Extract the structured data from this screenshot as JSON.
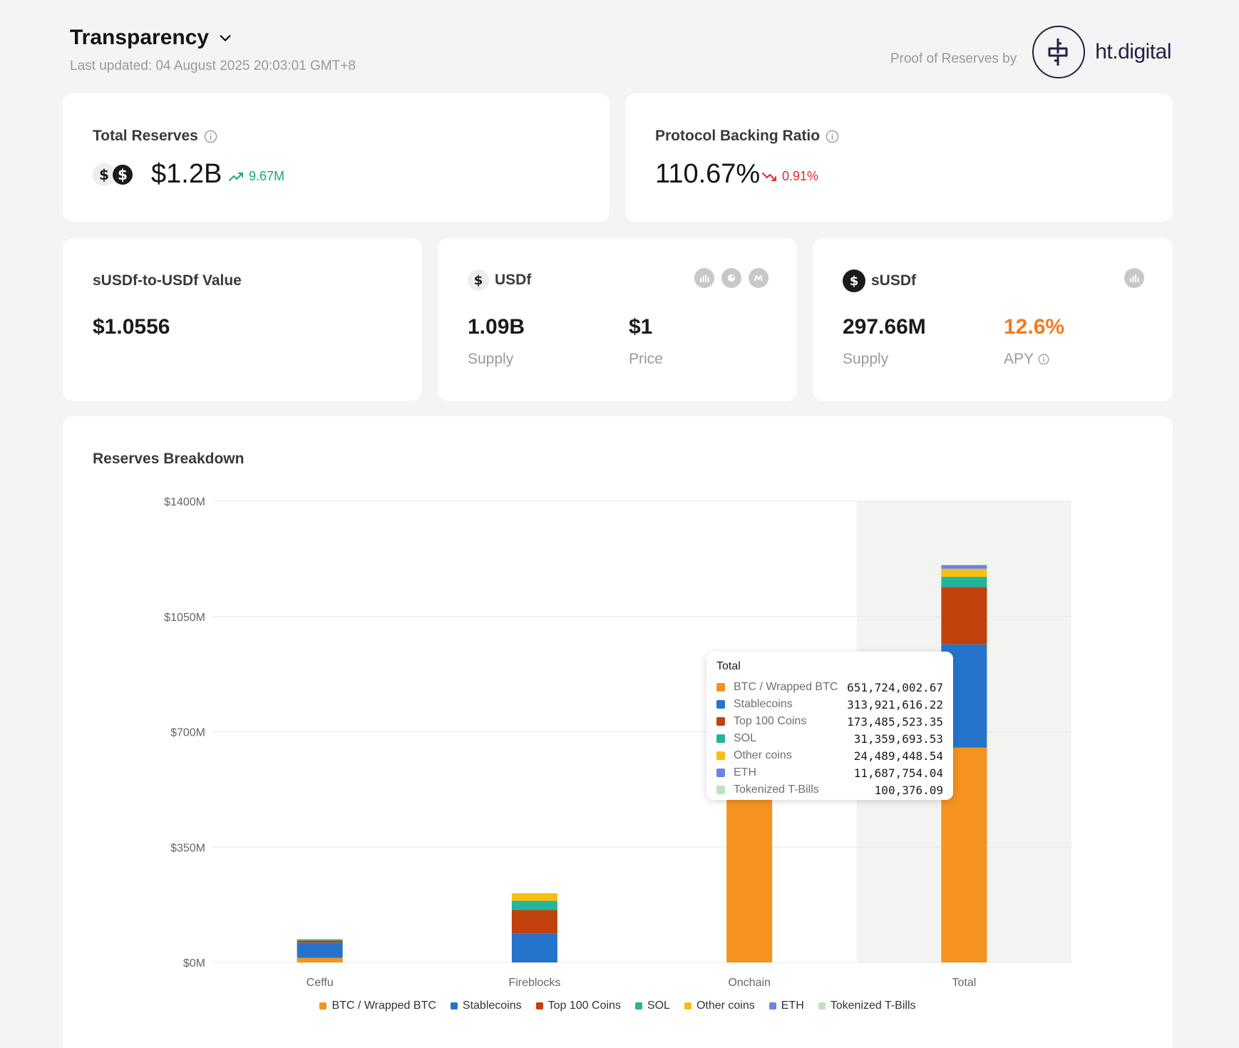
{
  "header": {
    "title": "Transparency",
    "last_updated": "Last updated: 04 August 2025 20:03:01 GMT+8",
    "proof_text": "Proof of Reserves by",
    "logo_text": "ht.digital"
  },
  "total_reserves": {
    "label": "Total Reserves",
    "value": "$1.2B",
    "delta": "9.67M"
  },
  "backing_ratio": {
    "label": "Protocol Backing Ratio",
    "value": "110.67%",
    "delta": "0.91%"
  },
  "susdf_value": {
    "label": "sUSDf-to-USDf Value",
    "value": "$1.0556"
  },
  "usdf": {
    "label": "USDf",
    "supply": "1.09B",
    "supply_label": "Supply",
    "price": "$1",
    "price_label": "Price"
  },
  "susdf": {
    "label": "sUSDf",
    "supply": "297.66M",
    "supply_label": "Supply",
    "apy": "12.6%",
    "apy_label": "APY"
  },
  "colors": {
    "up": "#19a87a",
    "down": "#e22a2a",
    "apy": "#f47a20"
  },
  "chart_data": {
    "type": "bar",
    "stacked": true,
    "title": "Reserves Breakdown",
    "xlabel": "",
    "ylabel": "",
    "y_ticks": [
      "$0M",
      "$350M",
      "$700M",
      "$1050M",
      "$1400M"
    ],
    "ylim": [
      0,
      1400
    ],
    "unit": "M USD",
    "categories": [
      "Ceffu",
      "Fireblocks",
      "Onchain",
      "Total"
    ],
    "highlighted_category": "Total",
    "series": [
      {
        "name": "BTC / Wrapped BTC",
        "color": "#f5931f",
        "values": [
          14,
          0,
          638,
          651.72
        ]
      },
      {
        "name": "Stablecoins",
        "color": "#2673cc",
        "values": [
          46,
          87,
          181,
          313.92
        ]
      },
      {
        "name": "Top 100 Coins",
        "color": "#c2410c",
        "values": [
          6,
          72,
          95,
          173.49
        ]
      },
      {
        "name": "SOL",
        "color": "#23b59a",
        "values": [
          3,
          28,
          0,
          31.36
        ]
      },
      {
        "name": "Other coins",
        "color": "#f5c011",
        "values": [
          1,
          23,
          0,
          24.49
        ]
      },
      {
        "name": "ETH",
        "color": "#6b82e6",
        "values": [
          0.5,
          0,
          11.2,
          11.69
        ]
      },
      {
        "name": "Tokenized T-Bills",
        "color": "#bfe3bc",
        "values": [
          0,
          0,
          0,
          0.1
        ]
      }
    ],
    "legend_position": "bottom",
    "tooltip": {
      "title": "Total",
      "rows": [
        {
          "name": "BTC / Wrapped BTC",
          "value": "651,724,002.67",
          "color": "#f5931f"
        },
        {
          "name": "Stablecoins",
          "value": "313,921,616.22",
          "color": "#2673cc"
        },
        {
          "name": "Top 100 Coins",
          "value": "173,485,523.35",
          "color": "#c2410c"
        },
        {
          "name": "SOL",
          "value": "31,359,693.53",
          "color": "#23b59a"
        },
        {
          "name": "Other coins",
          "value": "24,489,448.54",
          "color": "#f5c011"
        },
        {
          "name": "ETH",
          "value": "11,687,754.04",
          "color": "#6b82e6"
        },
        {
          "name": "Tokenized T-Bills",
          "value": "100,376.09",
          "color": "#bfe3bc"
        }
      ]
    }
  }
}
